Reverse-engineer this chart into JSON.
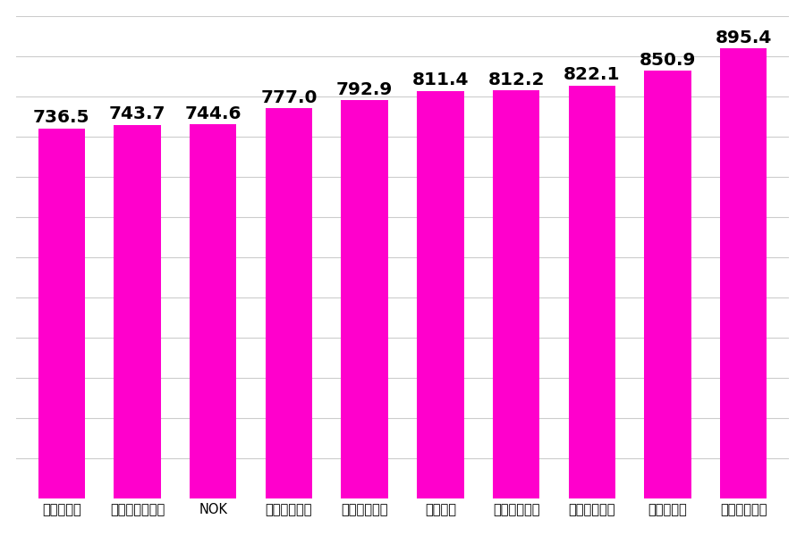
{
  "categories": [
    "川崎重工業",
    "三菱自動車工業",
    "NOK",
    "いず自動車",
    "豊田自動織機",
    "デンソー",
    "ヤマハ発動機",
    "本田技研工業",
    "日産自動車",
    "トヨタ自動車"
  ],
  "values": [
    736.5,
    743.7,
    744.6,
    777.0,
    792.9,
    811.4,
    812.2,
    822.1,
    850.9,
    895.4
  ],
  "bar_color": "#FF00CC",
  "label_color": "#000000",
  "background_color": "#FFFFFF",
  "grid_color": "#CCCCCC",
  "ylim_min": 0,
  "ylim_max": 960,
  "bar_width": 0.62,
  "tick_fontsize": 10.5,
  "value_fontsize": 14.5,
  "grid_linewidth": 0.8,
  "grid_yticks": [
    80,
    160,
    240,
    320,
    400,
    480,
    560,
    640,
    720,
    800,
    880,
    960
  ]
}
